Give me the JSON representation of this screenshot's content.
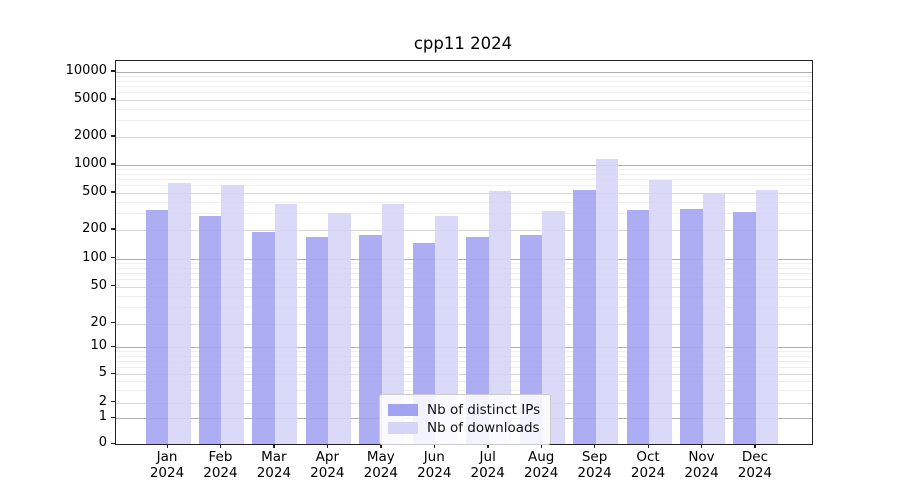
{
  "chart_data": {
    "type": "bar",
    "title": "cpp11 2024",
    "categories": [
      "Jan 2024",
      "Feb 2024",
      "Mar 2024",
      "Apr 2024",
      "May 2024",
      "Jun 2024",
      "Jul 2024",
      "Aug 2024",
      "Sep 2024",
      "Oct 2024",
      "Nov 2024",
      "Dec 2024"
    ],
    "series": [
      {
        "name": "Nb of distinct IPs",
        "color": "#a2a2f2",
        "values": [
          325,
          285,
          190,
          170,
          175,
          145,
          170,
          175,
          530,
          325,
          335,
          310
        ]
      },
      {
        "name": "Nb of downloads",
        "color": "#d5d5f7",
        "values": [
          640,
          610,
          375,
          300,
          380,
          285,
          520,
          320,
          1150,
          690,
          490,
          530
        ]
      }
    ],
    "xlabel": "",
    "ylabel": "",
    "yscale": "symlog",
    "y_ticks": [
      0,
      1,
      2,
      5,
      10,
      20,
      50,
      100,
      200,
      500,
      1000,
      2000,
      5000,
      10000
    ],
    "ylim": [
      0,
      12500
    ],
    "grid": "both",
    "legend_position": "lower center",
    "colors": {
      "grid_decade": "#b0b0b0",
      "grid_major": "#d8d8d8",
      "grid_minor": "#eeeeee",
      "spine": "#222222"
    }
  }
}
